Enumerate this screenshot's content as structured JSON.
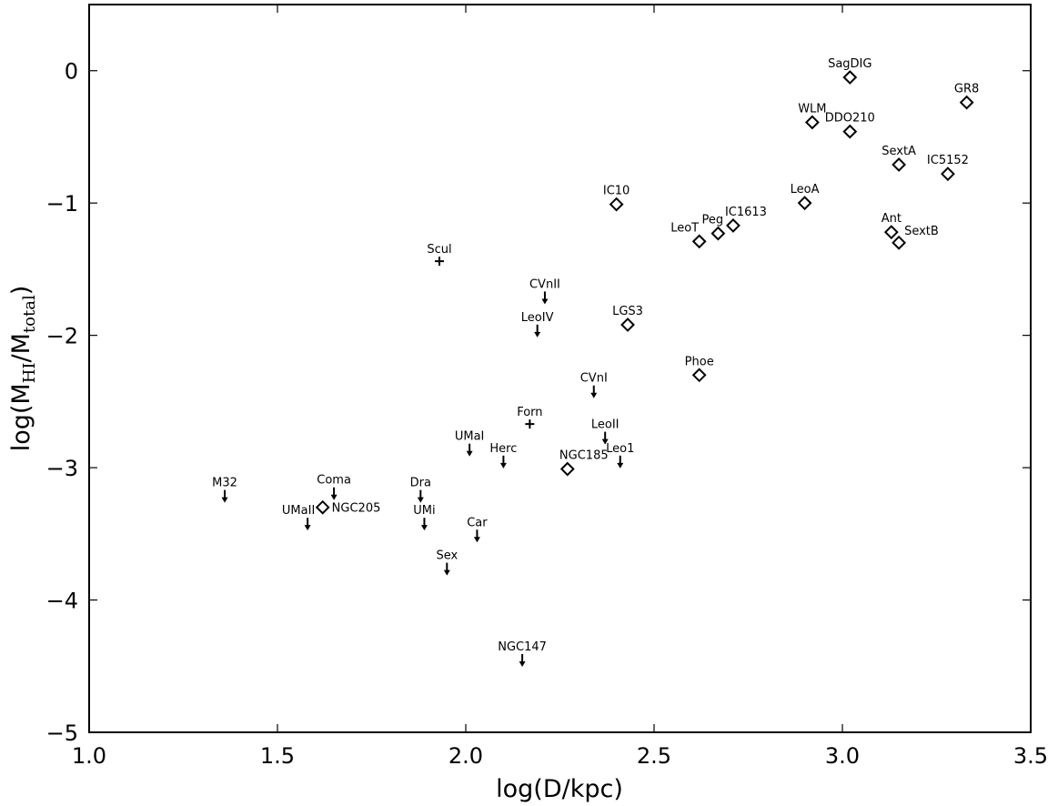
{
  "chart_data": {
    "type": "scatter",
    "xlabel": "log(D/kpc)",
    "ylabel": {
      "prefix": "log(M",
      "sub1": "HI",
      "mid": "/M",
      "sub2": "total",
      "suffix": ")"
    },
    "xlim": [
      1.0,
      3.5
    ],
    "ylim": [
      -5,
      0.5
    ],
    "xticks": [
      {
        "v": 1.0,
        "label": "1.0"
      },
      {
        "v": 1.5,
        "label": "1.5"
      },
      {
        "v": 2.0,
        "label": "2.0"
      },
      {
        "v": 2.5,
        "label": "2.5"
      },
      {
        "v": 3.0,
        "label": "3.0"
      },
      {
        "v": 3.5,
        "label": "3.5"
      }
    ],
    "yticks": [
      {
        "v": 0,
        "label": "0"
      },
      {
        "v": -1,
        "label": "−1"
      },
      {
        "v": -2,
        "label": "−2"
      },
      {
        "v": -3,
        "label": "−3"
      },
      {
        "v": -4,
        "label": "−4"
      },
      {
        "v": -5,
        "label": "−5"
      }
    ],
    "grid": false,
    "points": [
      {
        "name": "SagDIG",
        "x": 3.02,
        "y": -0.05,
        "marker": "diamond"
      },
      {
        "name": "GR8",
        "x": 3.33,
        "y": -0.24,
        "marker": "diamond"
      },
      {
        "name": "WLM",
        "x": 2.92,
        "y": -0.39,
        "marker": "diamond"
      },
      {
        "name": "DDO210",
        "x": 3.02,
        "y": -0.46,
        "marker": "diamond"
      },
      {
        "name": "SextA",
        "x": 3.15,
        "y": -0.71,
        "marker": "diamond"
      },
      {
        "name": "IC5152",
        "x": 3.28,
        "y": -0.78,
        "marker": "diamond"
      },
      {
        "name": "IC10",
        "x": 2.4,
        "y": -1.01,
        "marker": "diamond"
      },
      {
        "name": "LeoA",
        "x": 2.9,
        "y": -1.0,
        "marker": "diamond"
      },
      {
        "name": "IC1613",
        "x": 2.71,
        "y": -1.17,
        "marker": "diamond"
      },
      {
        "name": "Peg",
        "x": 2.67,
        "y": -1.23,
        "marker": "diamond"
      },
      {
        "name": "LeoT",
        "x": 2.62,
        "y": -1.29,
        "marker": "diamond"
      },
      {
        "name": "Ant",
        "x": 3.13,
        "y": -1.22,
        "marker": "diamond"
      },
      {
        "name": "SextB",
        "x": 3.15,
        "y": -1.3,
        "marker": "diamond"
      },
      {
        "name": "LGS3",
        "x": 2.43,
        "y": -1.92,
        "marker": "diamond"
      },
      {
        "name": "Phoe",
        "x": 2.62,
        "y": -2.3,
        "marker": "diamond"
      },
      {
        "name": "NGC185",
        "x": 2.27,
        "y": -3.01,
        "marker": "diamond"
      },
      {
        "name": "NGC205",
        "x": 1.62,
        "y": -3.3,
        "marker": "diamond"
      },
      {
        "name": "Scul",
        "x": 1.93,
        "y": -1.44,
        "marker": "plus"
      },
      {
        "name": "Forn",
        "x": 2.17,
        "y": -2.67,
        "marker": "plus"
      },
      {
        "name": "CVnII",
        "x": 2.21,
        "y": -1.71,
        "marker": "upper-limit"
      },
      {
        "name": "LeoIV",
        "x": 2.19,
        "y": -1.96,
        "marker": "upper-limit"
      },
      {
        "name": "CVnI",
        "x": 2.34,
        "y": -2.42,
        "marker": "upper-limit"
      },
      {
        "name": "LeoII",
        "x": 2.37,
        "y": -2.77,
        "marker": "upper-limit"
      },
      {
        "name": "Leo1",
        "x": 2.41,
        "y": -2.95,
        "marker": "upper-limit"
      },
      {
        "name": "UMaI",
        "x": 2.01,
        "y": -2.86,
        "marker": "upper-limit"
      },
      {
        "name": "Herc",
        "x": 2.1,
        "y": -2.95,
        "marker": "upper-limit"
      },
      {
        "name": "M32",
        "x": 1.36,
        "y": -3.21,
        "marker": "upper-limit"
      },
      {
        "name": "Coma",
        "x": 1.65,
        "y": -3.19,
        "marker": "upper-limit"
      },
      {
        "name": "Dra",
        "x": 1.88,
        "y": -3.21,
        "marker": "upper-limit"
      },
      {
        "name": "UMaII",
        "x": 1.58,
        "y": -3.42,
        "marker": "upper-limit"
      },
      {
        "name": "UMi",
        "x": 1.89,
        "y": -3.42,
        "marker": "upper-limit"
      },
      {
        "name": "Car",
        "x": 2.03,
        "y": -3.51,
        "marker": "upper-limit"
      },
      {
        "name": "Sex",
        "x": 1.95,
        "y": -3.76,
        "marker": "upper-limit"
      },
      {
        "name": "NGC147",
        "x": 2.15,
        "y": -4.45,
        "marker": "upper-limit"
      }
    ]
  }
}
